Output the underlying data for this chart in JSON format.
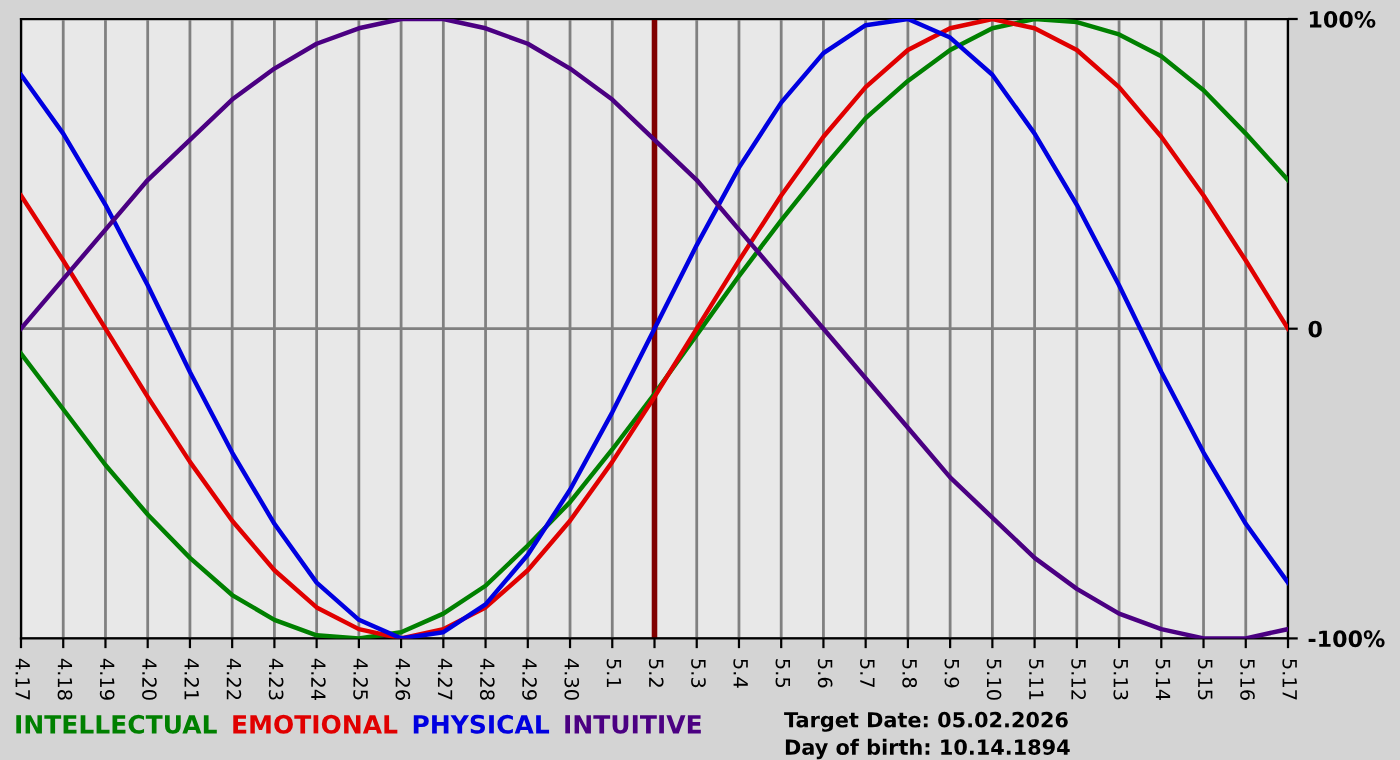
{
  "chart_data": {
    "type": "line",
    "categories": [
      "4.17",
      "4.18",
      "4.19",
      "4.20",
      "4.21",
      "4.22",
      "4.23",
      "4.24",
      "4.25",
      "4.26",
      "4.27",
      "4.28",
      "4.29",
      "4.30",
      "5.1",
      "5.2",
      "5.3",
      "5.4",
      "5.5",
      "5.6",
      "5.7",
      "5.8",
      "5.9",
      "5.10",
      "5.11",
      "5.12",
      "5.13",
      "5.14",
      "5.15",
      "5.16",
      "5.17"
    ],
    "series": [
      {
        "name": "INTELLECTUAL",
        "color": "#008000",
        "values": [
          -8,
          -26,
          -44,
          -60,
          -74,
          -86,
          -94,
          -99,
          -100,
          -98,
          -92,
          -83,
          -70,
          -56,
          -39,
          -21,
          -2,
          17,
          35,
          52,
          68,
          80,
          90,
          97,
          100,
          99,
          95,
          88,
          77,
          63,
          48
        ]
      },
      {
        "name": "EMOTIONAL",
        "color": "#e00000",
        "values": [
          43,
          22,
          0,
          -22,
          -43,
          -62,
          -78,
          -90,
          -97,
          -100,
          -97,
          -90,
          -78,
          -62,
          -43,
          -22,
          0,
          22,
          43,
          62,
          78,
          90,
          97,
          100,
          97,
          90,
          78,
          62,
          43,
          22,
          0
        ]
      },
      {
        "name": "PHYSICAL",
        "color": "#0000e0",
        "values": [
          82,
          63,
          40,
          14,
          -14,
          -40,
          -63,
          -82,
          -94,
          -100,
          -98,
          -89,
          -73,
          -52,
          -27,
          0,
          27,
          52,
          73,
          89,
          98,
          100,
          94,
          82,
          63,
          40,
          14,
          -14,
          -40,
          -63,
          -82
        ]
      },
      {
        "name": "INTUITIVE",
        "color": "#4b0082",
        "values": [
          0,
          16,
          32,
          48,
          61,
          74,
          84,
          92,
          97,
          100,
          100,
          97,
          92,
          84,
          74,
          61,
          48,
          32,
          16,
          0,
          -16,
          -32,
          -48,
          -61,
          -74,
          -84,
          -92,
          -97,
          -100,
          -100,
          -97
        ]
      }
    ],
    "ylim": [
      -100,
      100
    ],
    "yticks": [
      {
        "value": -100,
        "label": "-100%"
      },
      0,
      {
        "value": 100,
        "label": "100%"
      }
    ],
    "ref_lines": [
      {
        "axis": "x",
        "value": "5.2",
        "color": "#800000"
      }
    ],
    "annotations": [
      "Target Date: 05.02.2026",
      "Day of birth: 10.14.1894"
    ],
    "grid": true,
    "legend": "bottom left",
    "marker": "none",
    "line_style": "solid"
  }
}
